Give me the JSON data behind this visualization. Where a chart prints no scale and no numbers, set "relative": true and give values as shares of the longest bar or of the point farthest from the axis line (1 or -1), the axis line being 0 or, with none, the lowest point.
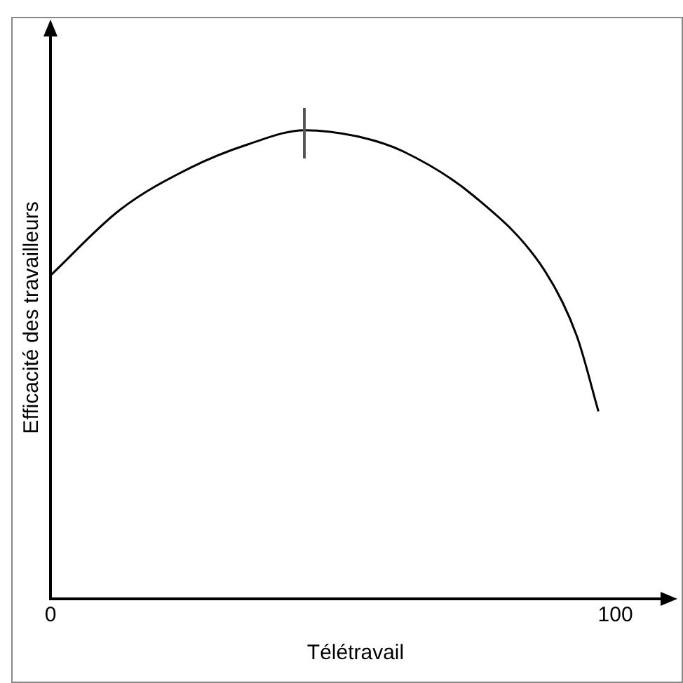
{
  "chart_data": {
    "type": "line",
    "relative": true,
    "xlabel": "Télétravail",
    "ylabel": "Efficacité des travailleurs",
    "xlim": [
      0,
      108
    ],
    "xticks": [
      0,
      100
    ],
    "grid": false,
    "legend": false,
    "marker": "none",
    "line_style": "solid",
    "series": [
      {
        "color": "#000000",
        "x": [
          0,
          12.3,
          24.8,
          35,
          45,
          55,
          62.4,
          74.9,
          87.5,
          93.2,
          97
        ],
        "values": [
          0.69,
          0.83,
          0.92,
          0.97,
          1,
          0.985,
          0.955,
          0.86,
          0.7,
          0.56,
          0.4
        ]
      }
    ]
  }
}
